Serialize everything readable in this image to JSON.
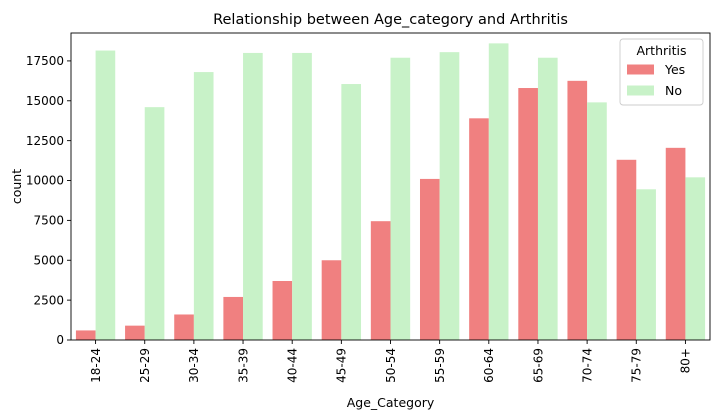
{
  "chart_data": {
    "type": "bar",
    "title": "Relationship between Age_category and Arthritis",
    "xlabel": "Age_Category",
    "ylabel": "count",
    "categories": [
      "18-24",
      "25-29",
      "30-34",
      "35-39",
      "40-44",
      "45-49",
      "50-54",
      "55-59",
      "60-64",
      "65-69",
      "70-74",
      "75-79",
      "80+"
    ],
    "series": [
      {
        "name": "Yes",
        "color": "#f08080",
        "values": [
          600,
          900,
          1600,
          2700,
          3700,
          5000,
          7450,
          10100,
          13900,
          15800,
          16250,
          11300,
          12050
        ]
      },
      {
        "name": "No",
        "color": "#c8f2c8",
        "values": [
          18150,
          14600,
          16800,
          18000,
          18000,
          16050,
          17700,
          18050,
          18600,
          17700,
          14900,
          9450,
          10200
        ]
      }
    ],
    "yticks": [
      0,
      2500,
      5000,
      7500,
      10000,
      12500,
      15000,
      17500
    ],
    "ylim": [
      0,
      19250
    ],
    "legend": {
      "title": "Arthritis",
      "placement": "top-right"
    },
    "grid": false
  }
}
